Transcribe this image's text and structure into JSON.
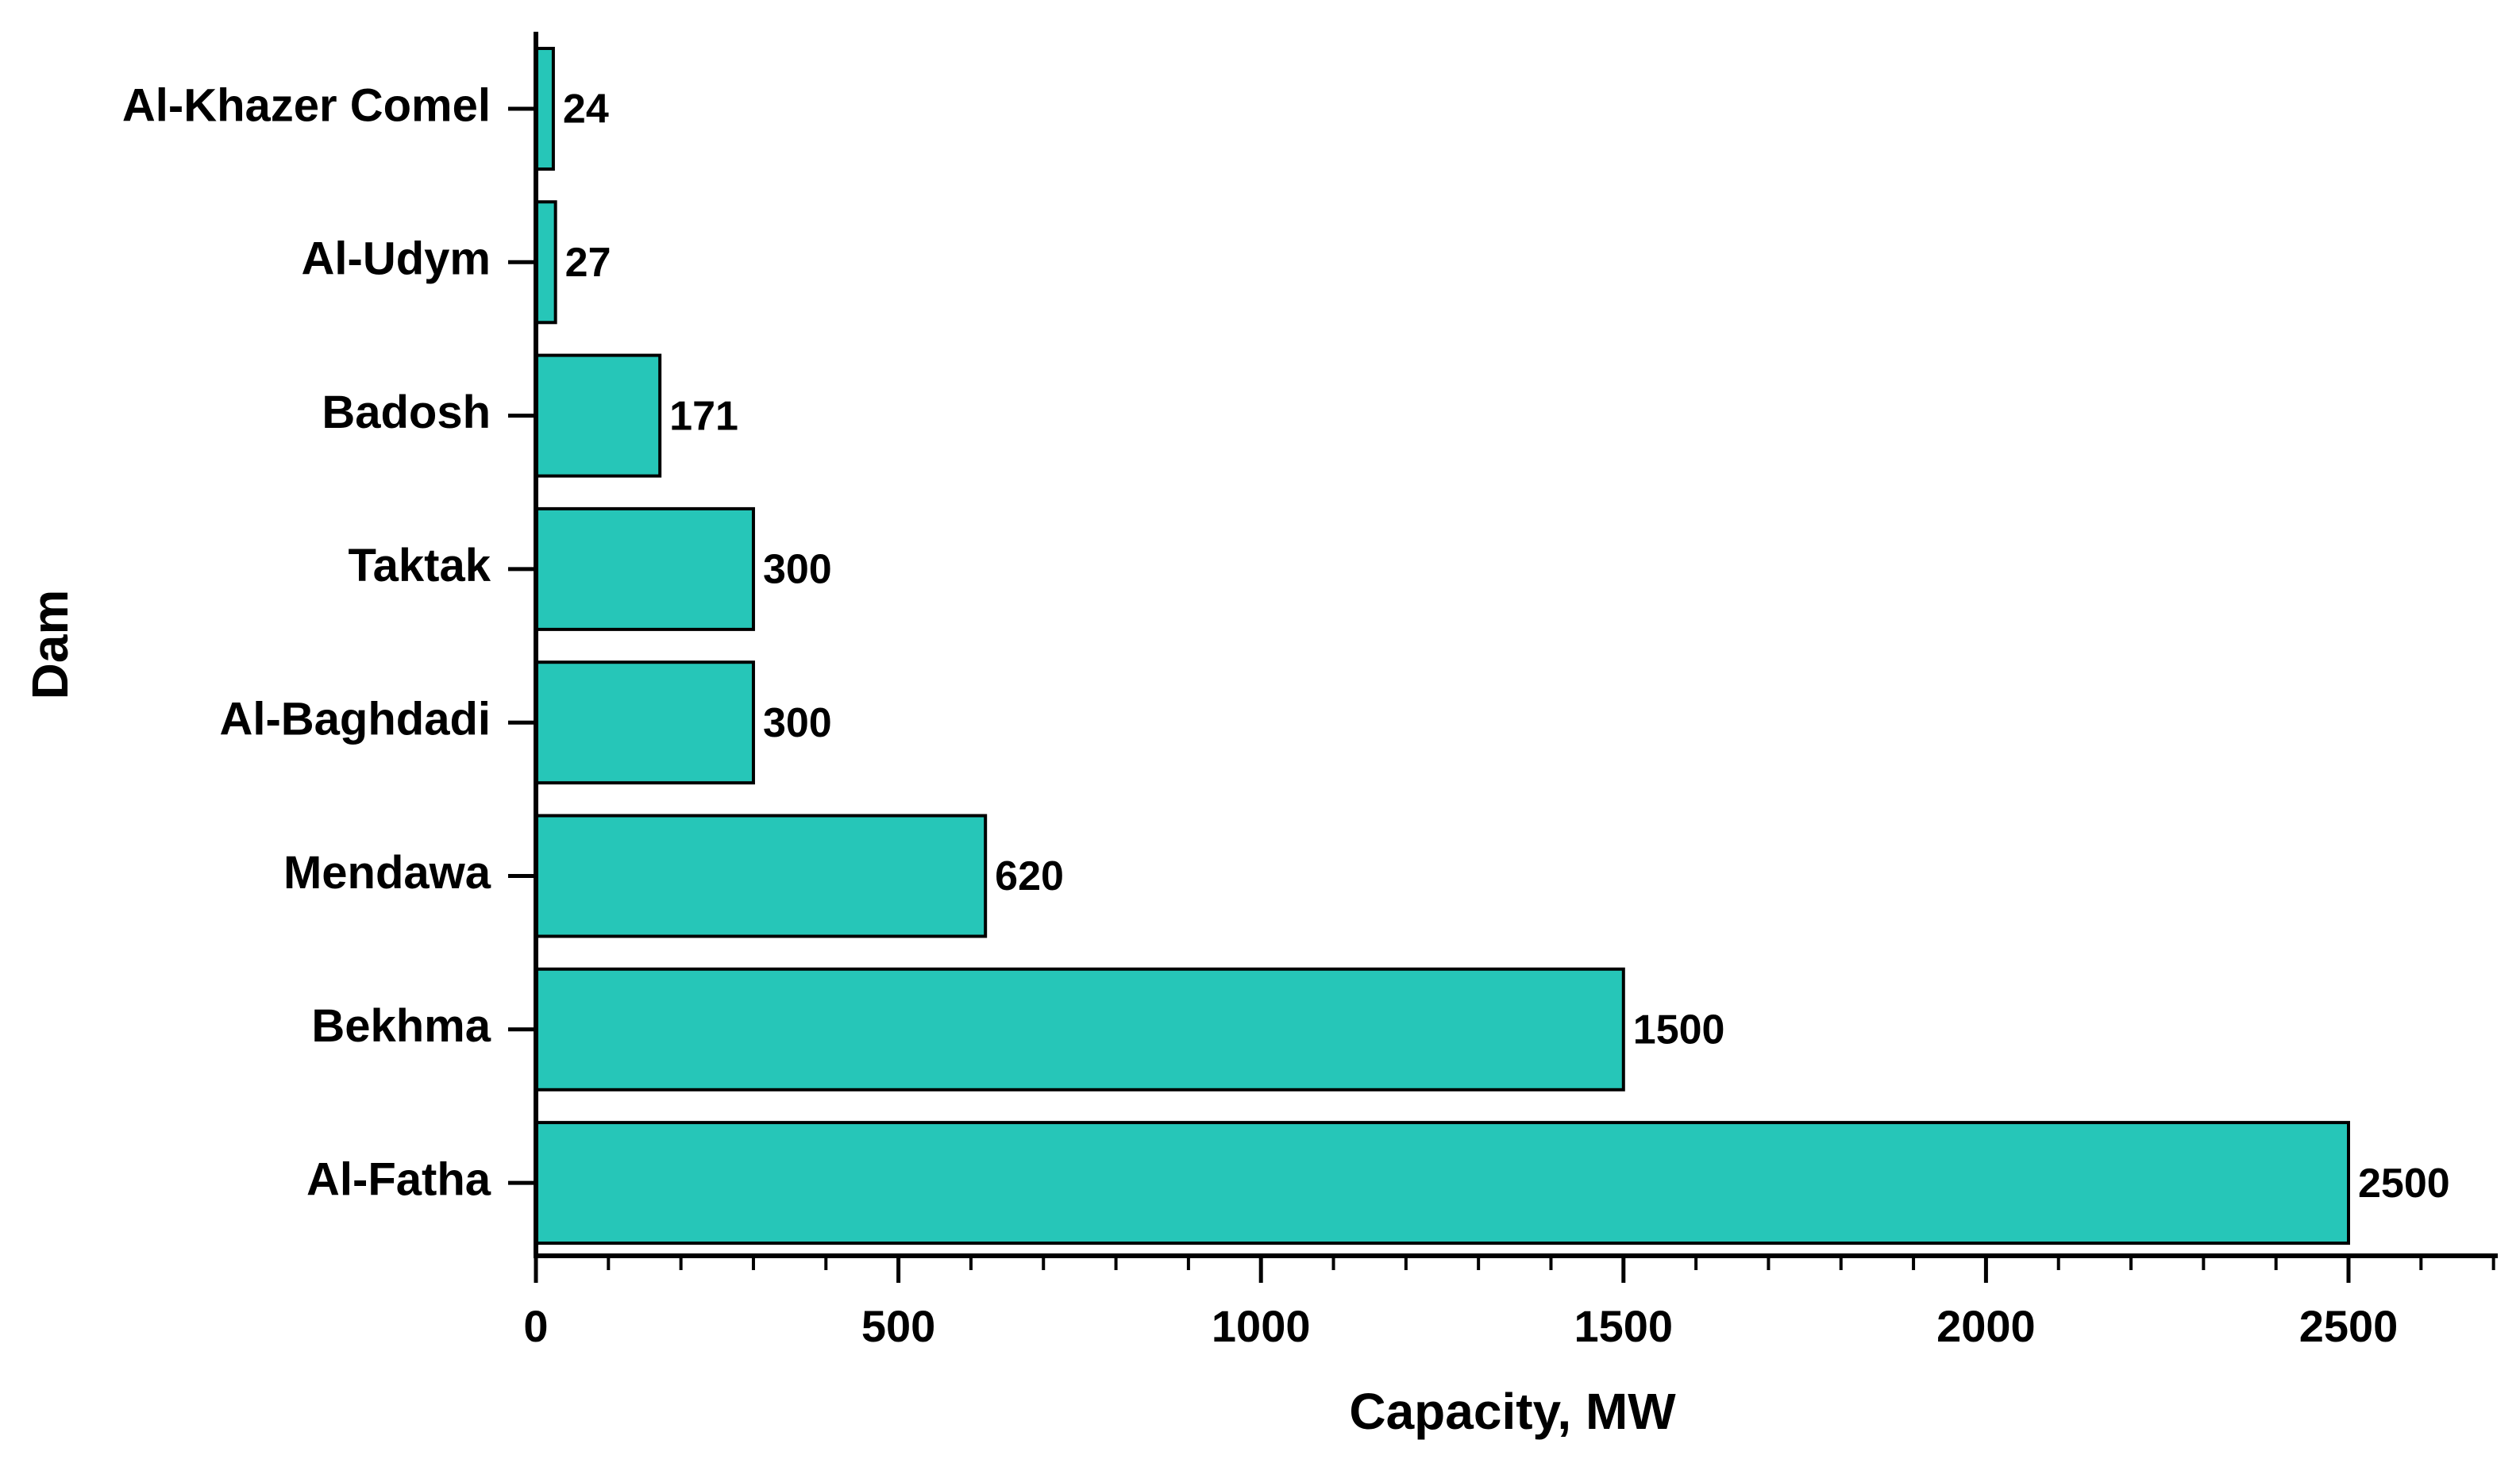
{
  "chart_data": {
    "type": "bar",
    "orientation": "horizontal",
    "categories": [
      "Al-Khazer Comel",
      "Al-Udym",
      "Badosh",
      "Taktak",
      "Al-Baghdadi",
      "Mendawa",
      "Bekhma",
      "Al-Fatha"
    ],
    "values": [
      24,
      27,
      171,
      300,
      300,
      620,
      1500,
      2500
    ],
    "value_labels": [
      "24",
      "27",
      "171",
      "300",
      "300",
      "620",
      "1500",
      "2500"
    ],
    "xlabel": "Capacity, MW",
    "ylabel": "Dam",
    "xlim": [
      0,
      2700
    ],
    "x_ticks": [
      0,
      500,
      1000,
      1500,
      2000,
      2500
    ],
    "x_tick_labels": [
      "0",
      "500",
      "1000",
      "1500",
      "2000",
      "2500"
    ],
    "x_minor_step": 100,
    "grid": false,
    "legend": "none",
    "bar_color": "#26C6B8",
    "edge_color": "#000000"
  }
}
